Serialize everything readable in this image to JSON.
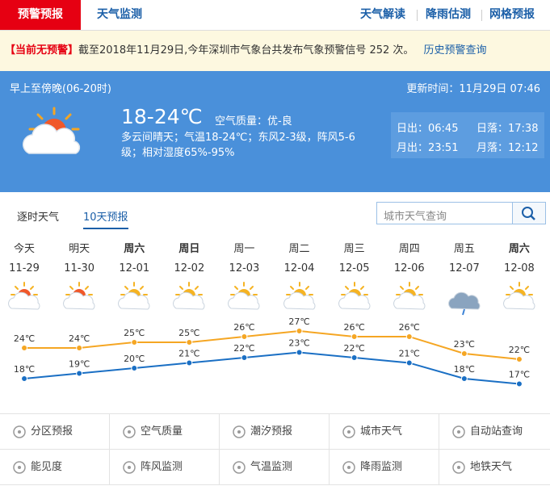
{
  "header": {
    "tabs": [
      "预警预报",
      "天气监测"
    ],
    "links": [
      "天气解读",
      "降雨估测",
      "网格预报"
    ]
  },
  "alert": {
    "status": "【当前无预警】",
    "text": "截至2018年11月29日,今年深圳市气象台共发布气象预警信号 252 次。",
    "link": "历史预警查询"
  },
  "today": {
    "period": "早上至傍晚(06-20时)",
    "update": "更新时间：11月29日 07:46",
    "temp": "18-24℃",
    "aqi": "空气质量：优-良",
    "desc": "多云间晴天；气温18-24℃；东风2-3级，阵风5-6级；相对湿度65%-95%",
    "sunrise": "日出：06:45",
    "sunset": "日落：17:38",
    "moonrise": "月出：23:51",
    "moonset": "月落：12:12"
  },
  "forecast_tabs": [
    "逐时天气",
    "10天预报"
  ],
  "search_placeholder": "城市天气查询",
  "forecast": {
    "days": [
      "今天",
      "明天",
      "周六",
      "周日",
      "周一",
      "周二",
      "周三",
      "周四",
      "周五",
      "周六"
    ],
    "dates": [
      "11-29",
      "11-30",
      "12-01",
      "12-02",
      "12-03",
      "12-04",
      "12-05",
      "12-06",
      "12-07",
      "12-08"
    ],
    "high": [
      24,
      24,
      25,
      25,
      26,
      27,
      26,
      26,
      23,
      22
    ],
    "high_labels": [
      "24℃",
      "24℃",
      "25℃",
      "25℃",
      "26℃",
      "27℃",
      "26℃",
      "26℃",
      "23℃",
      "22℃"
    ],
    "low": [
      18,
      19,
      20,
      21,
      22,
      23,
      22,
      21,
      18,
      17
    ],
    "low_labels": [
      "18℃",
      "19℃",
      "20℃",
      "21℃",
      "22℃",
      "23℃",
      "22℃",
      "21℃",
      "18℃",
      "17℃"
    ]
  },
  "menu": [
    "分区预报",
    "空气质量",
    "潮汐预报",
    "城市天气",
    "自动站查询",
    "能见度",
    "阵风监测",
    "气温监测",
    "降雨监测",
    "地铁天气"
  ]
}
